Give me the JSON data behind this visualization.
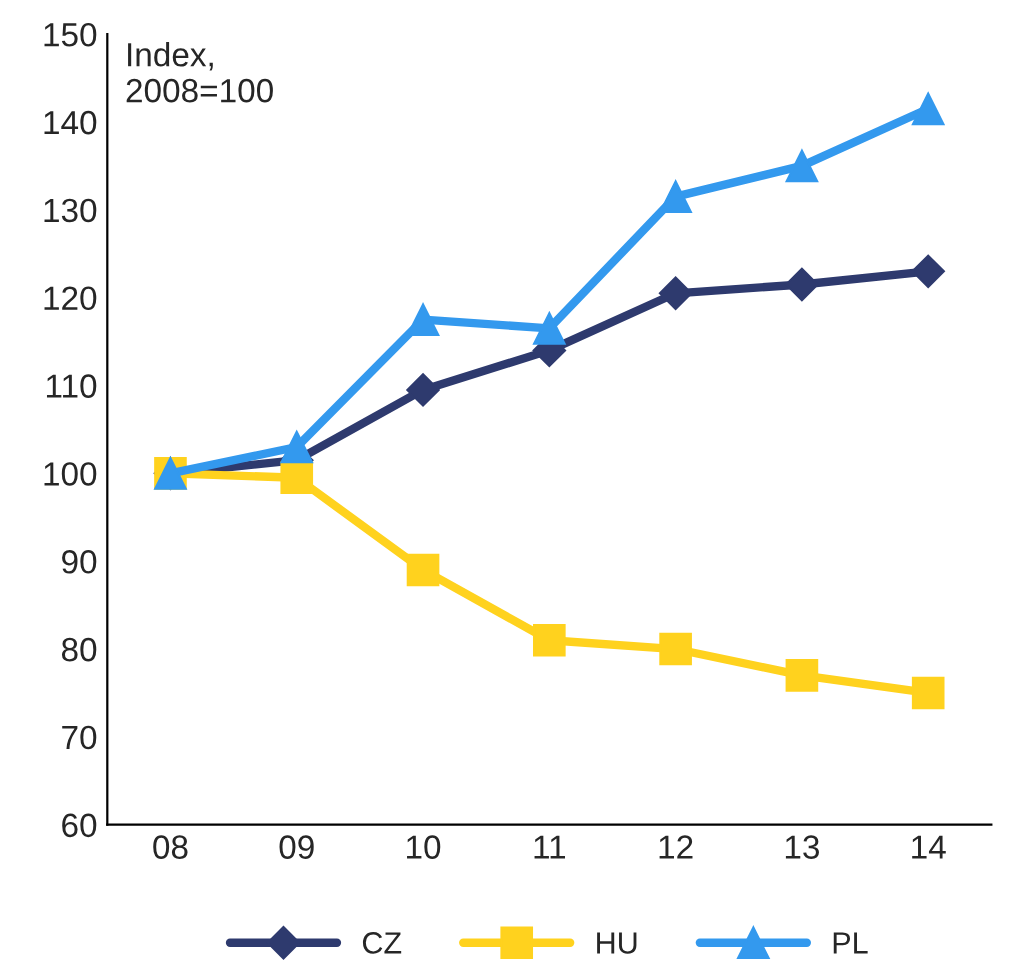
{
  "chart_data": {
    "type": "line",
    "ylabel": "Index,\n2008=100",
    "categories": [
      "08",
      "09",
      "10",
      "11",
      "12",
      "13",
      "14"
    ],
    "series": [
      {
        "name": "CZ",
        "color": "#2e3a6e",
        "marker": "diamond",
        "values": [
          100,
          101.5,
          109.5,
          114,
          120.5,
          121.5,
          123
        ]
      },
      {
        "name": "HU",
        "color": "#ffd21e",
        "marker": "square",
        "values": [
          100,
          99.5,
          89,
          81,
          80,
          77,
          75
        ]
      },
      {
        "name": "PL",
        "color": "#3399ee",
        "marker": "triangle",
        "values": [
          100,
          103,
          117.5,
          116.5,
          131.5,
          135,
          141.5
        ]
      }
    ],
    "ylim": [
      60,
      150
    ],
    "yticks": [
      60,
      70,
      80,
      90,
      100,
      110,
      120,
      130,
      140,
      150
    ],
    "grid": false,
    "legend": "bottom",
    "line_style": "solid"
  }
}
